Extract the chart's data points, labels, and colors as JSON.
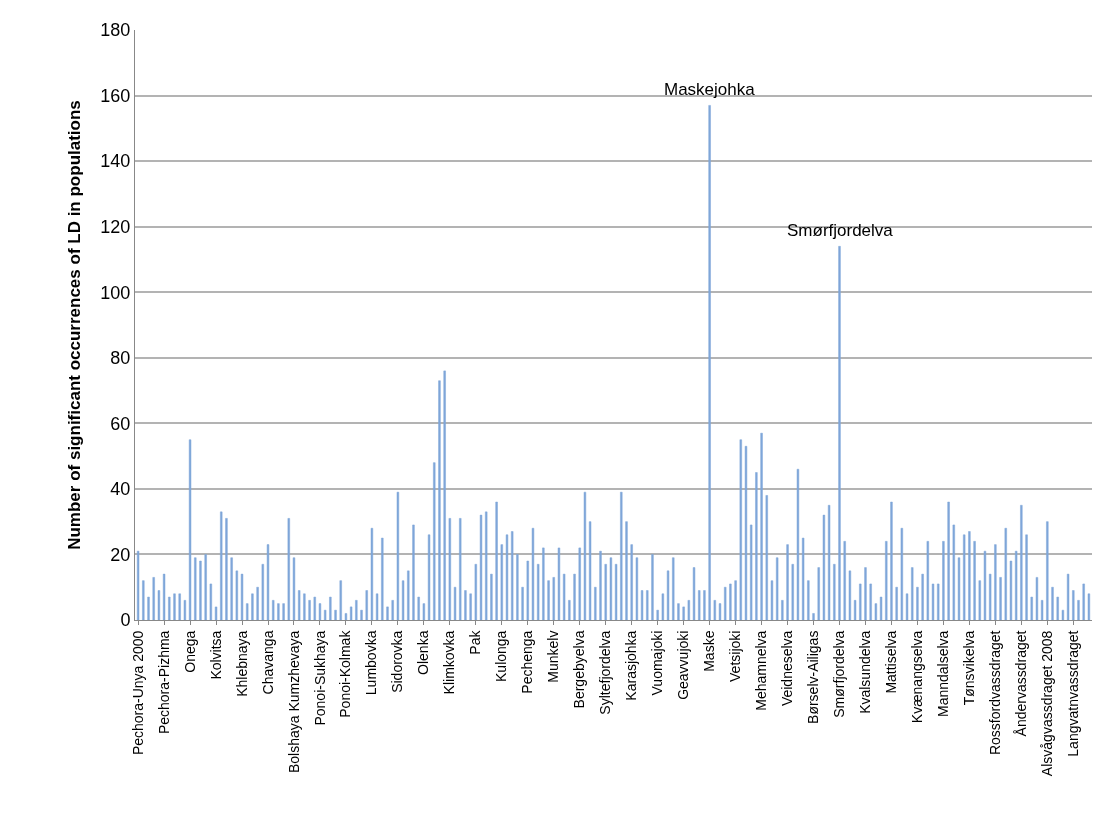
{
  "chart_data": {
    "type": "bar",
    "ylabel": "Number of significant occurrences of LD in populations",
    "categories": [
      "Pechora-Unya 2000",
      null,
      null,
      null,
      null,
      "Pechora-Pizhma",
      null,
      null,
      null,
      null,
      "Onega",
      null,
      null,
      null,
      null,
      "Kolvitsa",
      null,
      null,
      null,
      null,
      "Khlebnaya",
      null,
      null,
      null,
      null,
      "Chavanga",
      null,
      null,
      null,
      null,
      "Bolshaya Kumzhevaya",
      null,
      null,
      null,
      null,
      "Ponoi-Sukhaya",
      null,
      null,
      null,
      null,
      "Ponoi-Kolmak",
      null,
      null,
      null,
      null,
      "Lumbovka",
      null,
      null,
      null,
      null,
      "Sidorovka",
      null,
      null,
      null,
      null,
      "Olenka",
      null,
      null,
      null,
      null,
      "Klimkovka",
      null,
      null,
      null,
      null,
      "Pak",
      null,
      null,
      null,
      null,
      "Kulonga",
      null,
      null,
      null,
      null,
      "Pechenga",
      null,
      null,
      null,
      null,
      "Munkelv",
      null,
      null,
      null,
      null,
      "Bergebyelva",
      null,
      null,
      null,
      null,
      "Syltefjordelva",
      null,
      null,
      null,
      null,
      "Karasjohka",
      null,
      null,
      null,
      null,
      "Vuomajoki",
      null,
      null,
      null,
      null,
      "Geavvujoki",
      null,
      null,
      null,
      null,
      "Maske",
      null,
      null,
      null,
      null,
      "Vetsijoki",
      null,
      null,
      null,
      null,
      "Mehamnelva",
      null,
      null,
      null,
      null,
      "Veidneselva",
      null,
      null,
      null,
      null,
      "Børselv-Ailigas",
      null,
      null,
      null,
      null,
      "Smørfjordelva",
      null,
      null,
      null,
      null,
      "Kvalsundelva",
      null,
      null,
      null,
      null,
      "Mattiselva",
      null,
      null,
      null,
      null,
      "Kvænangselva",
      null,
      null,
      null,
      null,
      "Manndalselva",
      null,
      null,
      null,
      null,
      "Tønsvikelva",
      null,
      null,
      null,
      null,
      "Rossfordvassdraget",
      null,
      null,
      null,
      null,
      "Åndervassdraget",
      null,
      null,
      null,
      null,
      "Alsvågvassdraget 2008",
      null,
      null,
      null,
      null,
      "Langvatnvassdraget",
      null,
      null,
      null
    ],
    "series": [
      {
        "color": "#7fa6d9",
        "values": [
          21,
          12,
          7,
          13,
          9,
          14,
          7,
          8,
          8,
          6,
          55,
          19,
          18,
          20,
          11,
          4,
          33,
          31,
          19,
          15,
          14,
          5,
          8,
          10,
          17,
          23,
          6,
          5,
          5,
          31,
          19,
          9,
          8,
          6,
          7,
          5,
          3,
          7,
          3,
          12,
          2,
          4,
          6,
          3,
          9,
          28,
          8,
          25,
          4,
          6,
          39,
          12,
          15,
          29,
          7,
          5,
          26,
          48,
          73,
          76,
          31,
          10,
          31,
          9,
          8,
          17,
          32,
          33,
          14,
          36,
          23,
          26,
          27,
          20,
          10,
          18,
          28,
          17,
          22,
          12,
          13,
          22,
          14,
          6,
          14,
          22,
          39,
          30,
          10,
          21,
          17,
          19,
          17,
          39,
          30,
          23,
          19,
          9,
          9,
          20,
          3,
          8,
          15,
          19,
          5,
          4,
          6,
          16,
          9,
          9,
          157,
          6,
          5,
          10,
          11,
          12,
          55,
          53,
          29,
          45,
          57,
          38,
          12,
          19,
          6,
          23,
          17,
          46,
          25,
          12,
          2,
          16,
          32,
          35,
          17,
          114,
          24,
          15,
          6,
          11,
          16,
          11,
          5,
          7,
          24,
          36,
          10,
          28,
          8,
          16,
          10,
          14,
          24,
          11,
          11,
          24,
          36,
          29,
          19,
          26,
          27,
          24,
          12,
          21,
          14,
          23,
          13,
          28,
          18,
          21,
          35,
          26,
          7,
          13,
          6,
          30,
          10,
          7,
          3,
          14,
          9,
          6,
          11,
          8
        ]
      }
    ],
    "ylim": [
      0,
      180
    ],
    "yticks": [
      0,
      20,
      40,
      60,
      80,
      100,
      120,
      140,
      160,
      180
    ],
    "grid": "y",
    "annotations": [
      {
        "text": "Maskejohka",
        "x": "Maske",
        "y": 157
      },
      {
        "text": "Smørfjordelva",
        "x": "Smørfjordelva",
        "y": 114
      }
    ]
  }
}
